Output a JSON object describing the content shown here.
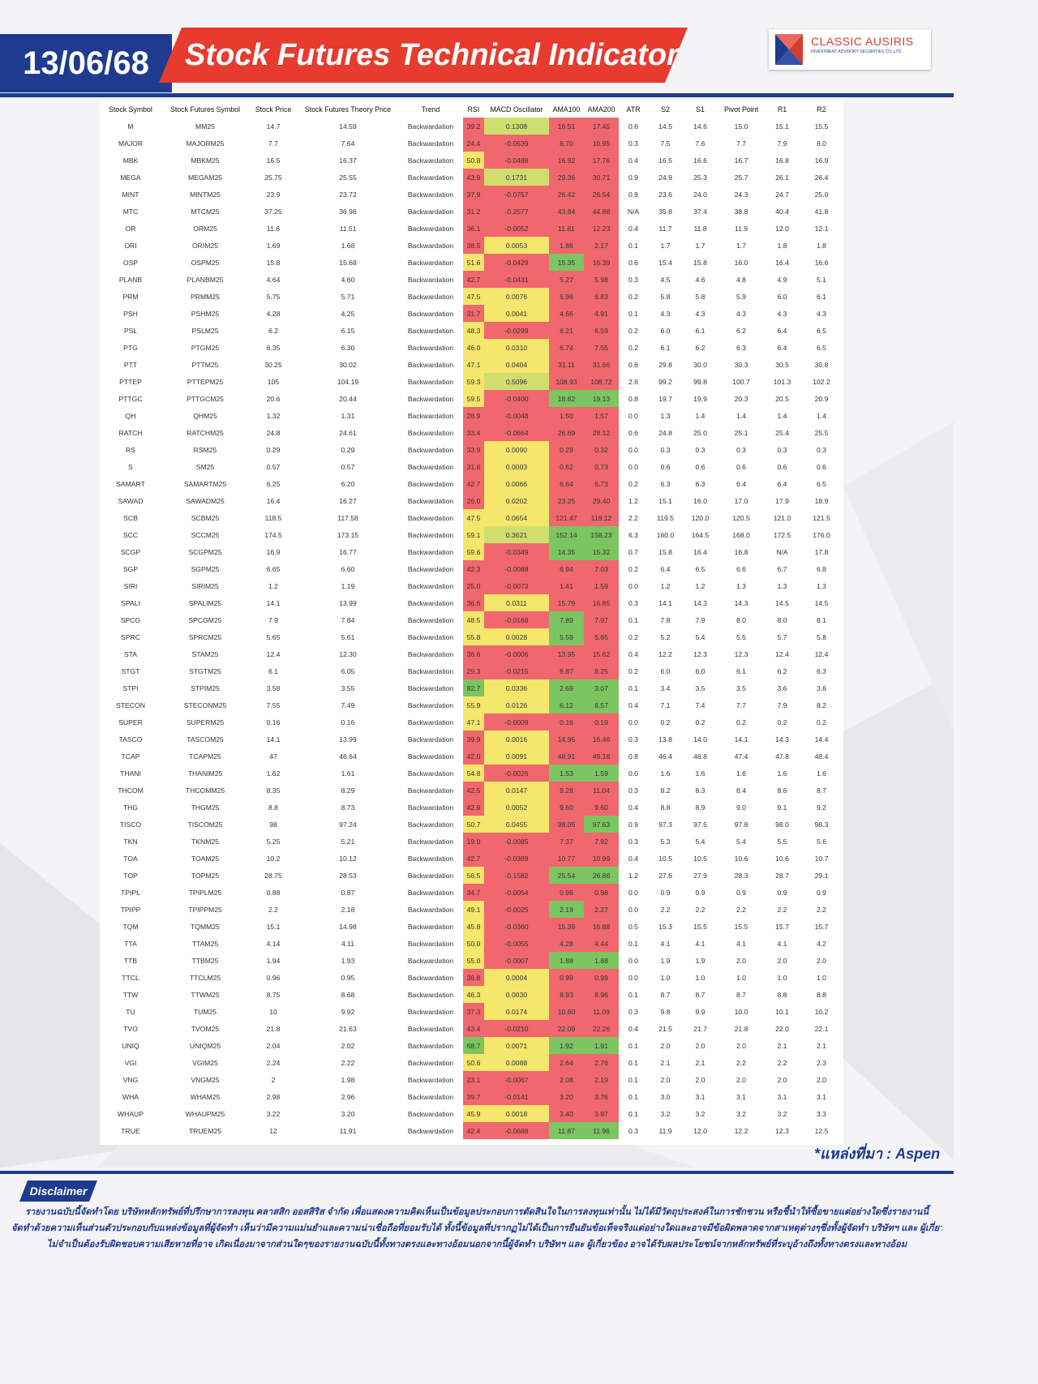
{
  "header": {
    "date": "13/06/68",
    "title": "Stock Futures Technical Indicator",
    "logo_name": "CLASSIC AUSIRIS",
    "logo_sub": "INVESTMENT ADVISORY SECURITIES CO.,LTD."
  },
  "colors": {
    "brand_blue": "#1f3b8f",
    "brand_red": "#e63b2e",
    "cell_red": "#f0676d",
    "cell_yellow": "#f5e66c",
    "cell_green": "#7cc561",
    "cell_lime": "#d0de6d"
  },
  "table": {
    "columns": [
      "Stock Symbol",
      "Stock Futures Symbol",
      "Stock Price",
      "Stock Futures Theory Price",
      "Trend",
      "RSI",
      "MACD Oscillator",
      "AMA100",
      "AMA200",
      "ATR",
      "S2",
      "S1",
      "Pivot Point",
      "R1",
      "R2"
    ],
    "rows": [
      [
        "M",
        "MM25",
        "14.7",
        "14.59",
        "Backwardation",
        "39.2",
        "0.1308",
        "16.51",
        "17.45",
        "0.6",
        "14.5",
        "14.6",
        "15.0",
        "15.1",
        "15.5"
      ],
      [
        "MAJOR",
        "MAJORM25",
        "7.7",
        "7.64",
        "Backwardation",
        "24.4",
        "-0.0539",
        "8.70",
        "10.95",
        "0.3",
        "7.5",
        "7.6",
        "7.7",
        "7.9",
        "8.0"
      ],
      [
        "MBK",
        "MBKM25",
        "16.5",
        "16.37",
        "Backwardation",
        "50.8",
        "-0.0488",
        "16.92",
        "17.76",
        "0.4",
        "16.5",
        "16.6",
        "16.7",
        "16.8",
        "16.9"
      ],
      [
        "MEGA",
        "MEGAM25",
        "25.75",
        "25.55",
        "Backwardation",
        "43.9",
        "0.1731",
        "29.36",
        "30.71",
        "0.9",
        "24.9",
        "25.3",
        "25.7",
        "26.1",
        "26.4"
      ],
      [
        "MINT",
        "MINTM25",
        "23.9",
        "23.72",
        "Backwardation",
        "37.9",
        "-0.0757",
        "26.42",
        "26.54",
        "0.8",
        "23.6",
        "24.0",
        "24.3",
        "24.7",
        "25.0"
      ],
      [
        "MTC",
        "MTCM25",
        "37.25",
        "36.96",
        "Backwardation",
        "31.2",
        "-0.2577",
        "43.84",
        "44.88",
        "N/A",
        "35.8",
        "37.4",
        "38.8",
        "40.4",
        "41.8"
      ],
      [
        "OR",
        "ORM25",
        "11.6",
        "11.51",
        "Backwardation",
        "36.1",
        "-0.0052",
        "11.81",
        "12.23",
        "0.4",
        "11.7",
        "11.8",
        "11.9",
        "12.0",
        "12.1"
      ],
      [
        "ORI",
        "ORIM25",
        "1.69",
        "1.68",
        "Backwardation",
        "38.5",
        "0.0053",
        "1.86",
        "2.17",
        "0.1",
        "1.7",
        "1.7",
        "1.7",
        "1.8",
        "1.8"
      ],
      [
        "OSP",
        "OSPM25",
        "15.8",
        "15.68",
        "Backwardation",
        "51.6",
        "-0.0429",
        "15.35",
        "16.39",
        "0.6",
        "15.4",
        "15.8",
        "16.0",
        "16.4",
        "16.6"
      ],
      [
        "PLANB",
        "PLANBM25",
        "4.64",
        "4.60",
        "Backwardation",
        "42.7",
        "-0.0431",
        "5.27",
        "5.98",
        "0.3",
        "4.5",
        "4.6",
        "4.8",
        "4.9",
        "5.1"
      ],
      [
        "PRM",
        "PRMM25",
        "5.75",
        "5.71",
        "Backwardation",
        "47.5",
        "0.0076",
        "5.96",
        "6.83",
        "0.2",
        "5.8",
        "5.8",
        "5.9",
        "6.0",
        "6.1"
      ],
      [
        "PSH",
        "PSHM25",
        "4.28",
        "4.25",
        "Backwardation",
        "31.7",
        "0.0041",
        "4.66",
        "4.91",
        "0.1",
        "4.3",
        "4.3",
        "4.3",
        "4.3",
        "4.3"
      ],
      [
        "PSL",
        "PSLM25",
        "6.2",
        "6.15",
        "Backwardation",
        "48.3",
        "-0.0299",
        "6.21",
        "6.59",
        "0.2",
        "6.0",
        "6.1",
        "6.2",
        "6.4",
        "6.5"
      ],
      [
        "PTG",
        "PTGM25",
        "6.35",
        "6.30",
        "Backwardation",
        "46.0",
        "0.0310",
        "6.74",
        "7.55",
        "0.2",
        "6.1",
        "6.2",
        "6.3",
        "6.4",
        "6.5"
      ],
      [
        "PTT",
        "PTTM25",
        "30.25",
        "30.02",
        "Backwardation",
        "47.1",
        "0.0404",
        "31.11",
        "31.66",
        "0.6",
        "29.8",
        "30.0",
        "30.3",
        "30.5",
        "30.8"
      ],
      [
        "PTTEP",
        "PTTEPM25",
        "105",
        "104.19",
        "Backwardation",
        "59.3",
        "0.5096",
        "108.93",
        "108.72",
        "2.6",
        "99.2",
        "99.8",
        "100.7",
        "101.3",
        "102.2"
      ],
      [
        "PTTGC",
        "PTTGCM25",
        "20.6",
        "20.44",
        "Backwardation",
        "59.5",
        "-0.0400",
        "18.82",
        "19.13",
        "0.8",
        "19.7",
        "19.9",
        "20.3",
        "20.5",
        "20.9"
      ],
      [
        "QH",
        "QHM25",
        "1.32",
        "1.31",
        "Backwardation",
        "28.9",
        "-0.0048",
        "1.50",
        "1.57",
        "0.0",
        "1.3",
        "1.4",
        "1.4",
        "1.4",
        "1.4"
      ],
      [
        "RATCH",
        "RATCHM25",
        "24.8",
        "24.61",
        "Backwardation",
        "33.4",
        "-0.0664",
        "26.69",
        "28.12",
        "0.6",
        "24.8",
        "25.0",
        "25.1",
        "25.4",
        "25.5"
      ],
      [
        "RS",
        "RSM25",
        "0.29",
        "0.29",
        "Backwardation",
        "33.9",
        "0.0090",
        "0.29",
        "0.32",
        "0.0",
        "0.3",
        "0.3",
        "0.3",
        "0.3",
        "0.3"
      ],
      [
        "S",
        "SM25",
        "0.57",
        "0.57",
        "Backwardation",
        "31.6",
        "0.0003",
        "0.62",
        "0.73",
        "0.0",
        "0.6",
        "0.6",
        "0.6",
        "0.6",
        "0.6"
      ],
      [
        "SAMART",
        "SAMARTM25",
        "6.25",
        "6.20",
        "Backwardation",
        "42.7",
        "0.0066",
        "6.64",
        "6.73",
        "0.2",
        "6.3",
        "6.3",
        "6.4",
        "6.4",
        "6.5"
      ],
      [
        "SAWAD",
        "SAWADM25",
        "16.4",
        "16.27",
        "Backwardation",
        "26.0",
        "0.0202",
        "23.25",
        "29.40",
        "1.2",
        "15.1",
        "16.0",
        "17.0",
        "17.9",
        "18.9"
      ],
      [
        "SCB",
        "SCBM25",
        "118.5",
        "117.58",
        "Backwardation",
        "47.5",
        "0.0654",
        "121.47",
        "119.12",
        "2.2",
        "119.5",
        "120.0",
        "120.5",
        "121.0",
        "121.5"
      ],
      [
        "SCC",
        "SCCM25",
        "174.5",
        "173.15",
        "Backwardation",
        "59.1",
        "0.3621",
        "152.14",
        "158.23",
        "6.3",
        "160.0",
        "164.5",
        "168.0",
        "172.5",
        "176.0"
      ],
      [
        "SCGP",
        "SCGPM25",
        "16.9",
        "16.77",
        "Backwardation",
        "59.6",
        "-0.0349",
        "14.35",
        "15.32",
        "0.7",
        "15.8",
        "16.4",
        "16.8",
        "N/A",
        "17.8"
      ],
      [
        "SGP",
        "SGPM25",
        "6.65",
        "6.60",
        "Backwardation",
        "42.3",
        "-0.0088",
        "6.94",
        "7.03",
        "0.2",
        "6.4",
        "6.5",
        "6.6",
        "6.7",
        "6.8"
      ],
      [
        "SIRI",
        "SIRIM25",
        "1.2",
        "1.19",
        "Backwardation",
        "25.0",
        "-0.0073",
        "1.41",
        "1.59",
        "0.0",
        "1.2",
        "1.2",
        "1.3",
        "1.3",
        "1.3"
      ],
      [
        "SPALI",
        "SPALIM25",
        "14.1",
        "13.99",
        "Backwardation",
        "36.6",
        "0.0311",
        "15.79",
        "16.85",
        "0.3",
        "14.1",
        "14.3",
        "14.3",
        "14.5",
        "14.5"
      ],
      [
        "SPCG",
        "SPCGM25",
        "7.9",
        "7.84",
        "Backwardation",
        "48.5",
        "-0.0168",
        "7.89",
        "7.97",
        "0.1",
        "7.8",
        "7.9",
        "8.0",
        "8.0",
        "8.1"
      ],
      [
        "SPRC",
        "SPRCM25",
        "5.65",
        "5.61",
        "Backwardation",
        "55.8",
        "0.0028",
        "5.59",
        "5.65",
        "0.2",
        "5.2",
        "5.4",
        "5.5",
        "5.7",
        "5.8"
      ],
      [
        "STA",
        "STAM25",
        "12.4",
        "12.30",
        "Backwardation",
        "36.6",
        "-0.0006",
        "13.95",
        "15.62",
        "0.4",
        "12.2",
        "12.3",
        "12.3",
        "12.4",
        "12.4"
      ],
      [
        "STGT",
        "STGTM25",
        "6.1",
        "6.05",
        "Backwardation",
        "29.3",
        "-0.0215",
        "6.87",
        "8.25",
        "0.2",
        "6.0",
        "6.0",
        "6.1",
        "6.2",
        "6.3"
      ],
      [
        "STPI",
        "STPIM25",
        "3.58",
        "3.55",
        "Backwardation",
        "82.7",
        "0.0336",
        "2.69",
        "3.07",
        "0.1",
        "3.4",
        "3.5",
        "3.5",
        "3.6",
        "3.6"
      ],
      [
        "STECON",
        "STECONM25",
        "7.55",
        "7.49",
        "Backwardation",
        "55.9",
        "0.0126",
        "6.12",
        "6.57",
        "0.4",
        "7.1",
        "7.4",
        "7.7",
        "7.9",
        "8.2"
      ],
      [
        "SUPER",
        "SUPERM25",
        "0.16",
        "0.16",
        "Backwardation",
        "47.1",
        "-0.0009",
        "0.16",
        "0.19",
        "0.0",
        "0.2",
        "0.2",
        "0.2",
        "0.2",
        "0.2"
      ],
      [
        "TASCO",
        "TASCOM25",
        "14.1",
        "13.99",
        "Backwardation",
        "39.9",
        "0.0016",
        "14.95",
        "16.46",
        "0.3",
        "13.8",
        "14.0",
        "14.1",
        "14.3",
        "14.4"
      ],
      [
        "TCAP",
        "TCAPM25",
        "47",
        "46.64",
        "Backwardation",
        "42.0",
        "0.0091",
        "48.91",
        "49.18",
        "0.8",
        "46.4",
        "46.8",
        "47.4",
        "47.8",
        "48.4"
      ],
      [
        "THANI",
        "THANIM25",
        "1.62",
        "1.61",
        "Backwardation",
        "54.8",
        "-0.0026",
        "1.53",
        "1.59",
        "0.0",
        "1.6",
        "1.6",
        "1.6",
        "1.6",
        "1.6"
      ],
      [
        "THCOM",
        "THCOMM25",
        "8.35",
        "8.29",
        "Backwardation",
        "42.5",
        "0.0147",
        "9.28",
        "11.04",
        "0.3",
        "8.2",
        "8.3",
        "8.4",
        "8.6",
        "8.7"
      ],
      [
        "THG",
        "THGM25",
        "8.8",
        "8.73",
        "Backwardation",
        "42.9",
        "0.0052",
        "9.60",
        "9.60",
        "0.4",
        "8.8",
        "8.9",
        "9.0",
        "9.1",
        "9.2"
      ],
      [
        "TISCO",
        "TISCOM25",
        "98",
        "97.24",
        "Backwardation",
        "50.7",
        "0.0455",
        "98.05",
        "97.63",
        "0.9",
        "97.3",
        "97.5",
        "97.8",
        "98.0",
        "98.3"
      ],
      [
        "TKN",
        "TKNM25",
        "5.25",
        "5.21",
        "Backwardation",
        "19.0",
        "-0.0085",
        "7.37",
        "7.92",
        "0.3",
        "5.3",
        "5.4",
        "5.4",
        "5.5",
        "5.6"
      ],
      [
        "TOA",
        "TOAM25",
        "10.2",
        "10.12",
        "Backwardation",
        "42.7",
        "-0.0389",
        "10.77",
        "10.99",
        "0.4",
        "10.5",
        "10.5",
        "10.6",
        "10.6",
        "10.7"
      ],
      [
        "TOP",
        "TOPM25",
        "28.75",
        "28.53",
        "Backwardation",
        "56.5",
        "-0.1582",
        "25.54",
        "26.86",
        "1.2",
        "27.6",
        "27.9",
        "28.3",
        "28.7",
        "29.1"
      ],
      [
        "TPIPL",
        "TPIPLM25",
        "0.88",
        "0.87",
        "Backwardation",
        "34.7",
        "-0.0054",
        "0.96",
        "0.98",
        "0.0",
        "0.9",
        "0.9",
        "0.9",
        "0.9",
        "0.9"
      ],
      [
        "TPIPP",
        "TPIPPM25",
        "2.2",
        "2.18",
        "Backwardation",
        "49.1",
        "-0.0025",
        "2.19",
        "2.27",
        "0.0",
        "2.2",
        "2.2",
        "2.2",
        "2.2",
        "2.2"
      ],
      [
        "TQM",
        "TQMM25",
        "15.1",
        "14.98",
        "Backwardation",
        "45.8",
        "-0.0360",
        "15.39",
        "16.88",
        "0.5",
        "15.3",
        "15.5",
        "15.5",
        "15.7",
        "15.7"
      ],
      [
        "TTA",
        "TTAM25",
        "4.14",
        "4.11",
        "Backwardation",
        "50.0",
        "-0.0055",
        "4.28",
        "4.44",
        "0.1",
        "4.1",
        "4.1",
        "4.1",
        "4.1",
        "4.2"
      ],
      [
        "TTB",
        "TTBM25",
        "1.94",
        "1.93",
        "Backwardation",
        "55.0",
        "-0.0007",
        "1.88",
        "1.88",
        "0.0",
        "1.9",
        "1.9",
        "2.0",
        "2.0",
        "2.0"
      ],
      [
        "TTCL",
        "TTCLM25",
        "0.96",
        "0.95",
        "Backwardation",
        "36.8",
        "0.0004",
        "0.99",
        "0.99",
        "0.0",
        "1.0",
        "1.0",
        "1.0",
        "1.0",
        "1.0"
      ],
      [
        "TTW",
        "TTWM25",
        "8.75",
        "8.68",
        "Backwardation",
        "46.3",
        "0.0030",
        "8.93",
        "8.96",
        "0.1",
        "8.7",
        "8.7",
        "8.7",
        "8.8",
        "8.8"
      ],
      [
        "TU",
        "TUM25",
        "10",
        "9.92",
        "Backwardation",
        "37.3",
        "0.0174",
        "10.60",
        "11.09",
        "0.3",
        "9.8",
        "9.9",
        "10.0",
        "10.1",
        "10.2"
      ],
      [
        "TVO",
        "TVOM25",
        "21.8",
        "21.63",
        "Backwardation",
        "43.4",
        "-0.0210",
        "22.09",
        "22.26",
        "0.4",
        "21.5",
        "21.7",
        "21.8",
        "22.0",
        "22.1"
      ],
      [
        "UNIQ",
        "UNIQM25",
        "2.04",
        "2.02",
        "Backwardation",
        "68.7",
        "0.0071",
        "1.92",
        "1.91",
        "0.1",
        "2.0",
        "2.0",
        "2.0",
        "2.1",
        "2.1"
      ],
      [
        "VGI",
        "VGIM25",
        "2.24",
        "2.22",
        "Backwardation",
        "50.6",
        "0.0088",
        "2.64",
        "2.76",
        "0.1",
        "2.1",
        "2.1",
        "2.2",
        "2.2",
        "2.3"
      ],
      [
        "VNG",
        "VNGM25",
        "2",
        "1.98",
        "Backwardation",
        "23.1",
        "-0.0067",
        "2.08",
        "2.19",
        "0.1",
        "2.0",
        "2.0",
        "2.0",
        "2.0",
        "2.0"
      ],
      [
        "WHA",
        "WHAM25",
        "2.98",
        "2.96",
        "Backwardation",
        "39.7",
        "-0.0141",
        "3.20",
        "3.76",
        "0.1",
        "3.0",
        "3.1",
        "3.1",
        "3.1",
        "3.1"
      ],
      [
        "WHAUP",
        "WHAUPM25",
        "3.22",
        "3.20",
        "Backwardation",
        "45.9",
        "0.0018",
        "3.40",
        "3.97",
        "0.1",
        "3.2",
        "3.2",
        "3.2",
        "3.2",
        "3.3"
      ],
      [
        "TRUE",
        "TRUEM25",
        "12",
        "11.91",
        "Backwardation",
        "42.4",
        "-0.0688",
        "11.87",
        "11.96",
        "0.3",
        "11.9",
        "12.0",
        "12.2",
        "12.3",
        "12.5"
      ]
    ]
  },
  "source": "*แหล่งที่มา : Aspen",
  "disclaimer": {
    "tag": "Disclaimer",
    "lines": [
      "รายงานฉบับนี้จัดทำโดย บริษัทหลักทรัพย์ที่ปรึกษาการลงทุน คลาสสิก ออสสิริส จำกัด เพื่อแสดงความคิดเห็นเป็นข้อมูลประกอบการตัดสินใจในการลงทุนเท่านั้น ไม่ได้มีวัตถุประสงค์ในการชักชวน หรือชี้นำให้ซื้อขายแต่อย่างใดซึ่งรายงานนี้",
      "จัดทำด้วยความเห็นส่วนตัวประกอบกับแหล่งข้อมูลที่ผู้จัดทำ เห็นว่ามีความแม่นยำและความน่าเชื่อถือที่ยอมรับได้ ทั้งนี้ข้อมูลที่ปรากฏไม่ได้เป็นการยืนยันข้อเท็จจริงแต่อย่างใดและอาจมีข้อผิดพลาดจากสาเหตุต่างๆซึ่งทั้งผู้จัดทำ บริษัทฯ และ ผู้เกี่ยวข้อง",
      "ไม่จำเป็นต้องรับผิดชอบความเสียหายที่อาจ เกิดเนื่องมาจากส่วนใดๆของรายงานฉบับนี้ทั้งทางตรงและทางอ้อมนอกจากนี้ผู้จัดทำ บริษัทฯ และ ผู้เกี่ยวข้อง อาจได้รับผลประโยชน์จากหลักทรัพย์ที่ระบุอ้างถึงทั้งทางตรงและทางอ้อม"
    ]
  }
}
